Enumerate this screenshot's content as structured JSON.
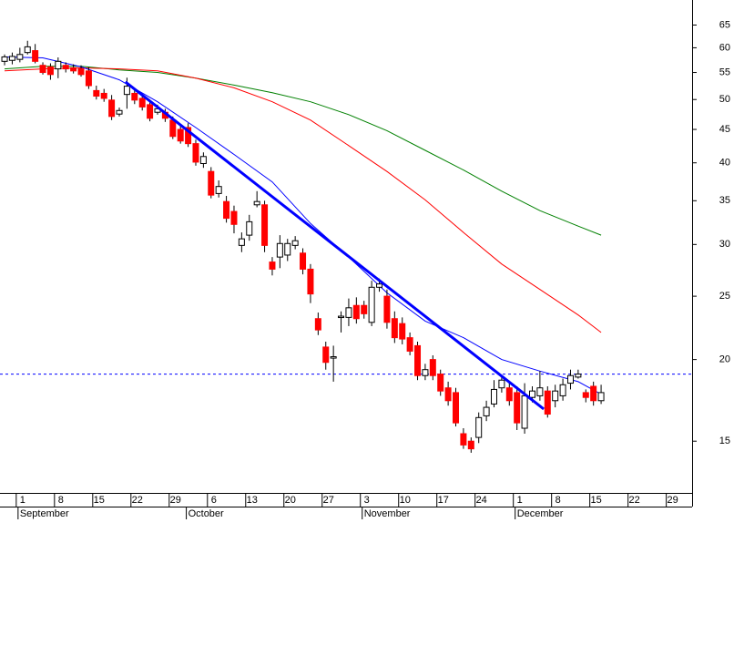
{
  "chart_data": {
    "type": "candlestick",
    "log_y": true,
    "ylim": [
      12.5,
      71
    ],
    "yticks": [
      15,
      20,
      25,
      30,
      35,
      40,
      45,
      50,
      55,
      60,
      65
    ],
    "xlim": [
      -2.6,
      87.9
    ],
    "xticks": [
      {
        "value": 0,
        "label": "1"
      },
      {
        "value": 5,
        "label": "8"
      },
      {
        "value": 10,
        "label": "15"
      },
      {
        "value": 15,
        "label": "22"
      },
      {
        "value": 20,
        "label": "29"
      },
      {
        "value": 25,
        "label": "6"
      },
      {
        "value": 30,
        "label": "13"
      },
      {
        "value": 35,
        "label": "20"
      },
      {
        "value": 40,
        "label": "27"
      },
      {
        "value": 45,
        "label": "3"
      },
      {
        "value": 50,
        "label": "10"
      },
      {
        "value": 55,
        "label": "17"
      },
      {
        "value": 60,
        "label": "24"
      },
      {
        "value": 65,
        "label": "1"
      },
      {
        "value": 70,
        "label": "8"
      },
      {
        "value": 75,
        "label": "15"
      },
      {
        "value": 80,
        "label": "22"
      },
      {
        "value": 85,
        "label": "29"
      }
    ],
    "month_ticks": [
      {
        "value": 0,
        "label": "September"
      },
      {
        "value": 22,
        "label": "October"
      },
      {
        "value": 45,
        "label": "November"
      },
      {
        "value": 65,
        "label": "December"
      }
    ],
    "up_color": "#ffffff",
    "down_color": "#ff0000",
    "x": [
      -2,
      -1,
      0,
      1,
      2,
      3,
      4,
      5,
      6,
      7,
      8,
      9,
      10,
      11,
      12,
      13,
      14,
      15,
      16,
      17,
      18,
      19,
      20,
      21,
      22,
      23,
      24,
      25,
      26,
      27,
      28,
      29,
      30,
      31,
      32,
      33,
      34,
      35,
      36,
      37,
      38,
      39,
      40,
      41,
      42,
      43,
      44,
      45,
      46,
      47,
      48,
      49,
      50,
      51,
      52,
      53,
      54,
      55,
      56,
      57,
      58,
      59,
      60,
      61,
      62,
      63,
      64,
      65,
      66,
      67,
      68,
      69,
      70,
      71,
      72,
      73,
      74,
      75,
      76
    ],
    "open": [
      57.2,
      57.4,
      57.6,
      59.0,
      59.4,
      56.4,
      56.1,
      55.7,
      56.4,
      55.9,
      55.7,
      55.3,
      51.6,
      51.1,
      49.9,
      47.5,
      50.9,
      51.1,
      50.2,
      49.1,
      47.8,
      47.8,
      46.5,
      45.0,
      45.3,
      42.8,
      39.9,
      38.8,
      35.9,
      34.9,
      33.7,
      29.9,
      31.0,
      34.5,
      34.5,
      28.2,
      28.7,
      28.9,
      29.9,
      29.1,
      27.5,
      23.1,
      20.9,
      20.1,
      23.2,
      23.2,
      24.2,
      24.2,
      22.8,
      25.8,
      25.0,
      23.1,
      22.7,
      21.6,
      21.0,
      18.9,
      20.0,
      19.0,
      18.1,
      17.8,
      15.4,
      15.0,
      15.2,
      16.4,
      17.1,
      18.1,
      18.1,
      17.8,
      15.7,
      17.5,
      17.6,
      17.9,
      17.3,
      17.6,
      18.4,
      18.8,
      17.8,
      18.2,
      17.3
    ],
    "high": [
      58.6,
      59.0,
      60.0,
      61.5,
      60.8,
      57.0,
      56.8,
      58.0,
      57.0,
      56.6,
      56.4,
      56.0,
      52.5,
      51.9,
      50.8,
      48.6,
      54.0,
      52.0,
      51.0,
      49.9,
      49.1,
      48.4,
      47.1,
      45.6,
      46.0,
      43.4,
      41.5,
      39.4,
      37.6,
      35.6,
      34.4,
      31.3,
      33.3,
      36.2,
      35.0,
      28.7,
      31.0,
      30.6,
      30.9,
      29.6,
      28.0,
      23.6,
      21.3,
      21.0,
      23.7,
      24.8,
      24.9,
      24.6,
      26.4,
      26.6,
      25.6,
      23.7,
      23.2,
      22.0,
      21.3,
      19.7,
      20.3,
      19.3,
      18.5,
      18.1,
      15.7,
      15.2,
      16.6,
      17.3,
      18.6,
      18.9,
      18.5,
      18.2,
      18.4,
      18.2,
      19.2,
      18.2,
      18.3,
      18.7,
      19.3,
      19.3,
      18.0,
      18.5,
      18.3
    ],
    "low": [
      56.4,
      56.6,
      57.0,
      58.6,
      56.8,
      54.6,
      53.6,
      53.9,
      55.0,
      54.8,
      54.2,
      51.9,
      50.0,
      49.6,
      46.5,
      47.1,
      48.4,
      49.2,
      48.1,
      46.3,
      47.4,
      46.2,
      43.5,
      42.8,
      42.3,
      39.6,
      39.3,
      35.3,
      35.4,
      32.4,
      31.2,
      29.2,
      30.4,
      34.2,
      29.2,
      26.9,
      27.6,
      28.3,
      29.5,
      27.0,
      24.4,
      21.8,
      19.3,
      18.5,
      22.0,
      22.5,
      22.7,
      23.1,
      22.5,
      25.4,
      22.3,
      21.2,
      21.1,
      20.3,
      18.6,
      18.6,
      18.6,
      17.6,
      17.0,
      15.8,
      14.6,
      14.4,
      14.9,
      16.1,
      16.9,
      17.8,
      17.0,
      15.6,
      15.4,
      17.2,
      17.3,
      16.3,
      16.9,
      17.3,
      18.0,
      18.7,
      17.2,
      17.0,
      17.1
    ],
    "close": [
      58.1,
      58.2,
      58.6,
      60.2,
      57.2,
      55.0,
      54.6,
      57.2,
      55.7,
      55.3,
      54.6,
      52.5,
      50.6,
      50.2,
      47.1,
      48.1,
      52.4,
      49.9,
      48.7,
      46.8,
      48.4,
      46.8,
      43.9,
      43.2,
      42.8,
      40.1,
      40.9,
      35.7,
      36.8,
      32.9,
      32.2,
      30.6,
      32.5,
      34.9,
      29.9,
      27.5,
      30.1,
      30.1,
      30.4,
      27.5,
      25.2,
      22.2,
      19.8,
      20.2,
      23.3,
      24.0,
      23.1,
      23.5,
      25.8,
      26.1,
      22.8,
      21.6,
      21.5,
      20.6,
      18.9,
      19.3,
      18.9,
      17.9,
      17.3,
      16.0,
      14.8,
      14.6,
      16.3,
      16.9,
      18.0,
      18.6,
      17.3,
      16.0,
      17.6,
      17.9,
      18.1,
      16.5,
      17.9,
      18.3,
      18.9,
      19.0,
      17.5,
      17.3,
      17.8
    ],
    "series": [
      {
        "color": "#008000",
        "x": [
          -2,
          3,
          8,
          13,
          18,
          23,
          28,
          33,
          38,
          43,
          48,
          53,
          58,
          63,
          68,
          73,
          76
        ],
        "values": [
          55.7,
          56.2,
          56.2,
          55.5,
          55.0,
          53.9,
          52.6,
          51.2,
          49.6,
          47.4,
          44.8,
          41.8,
          39.0,
          36.2,
          33.8,
          32.0,
          31.0
        ]
      },
      {
        "color": "#ff0000",
        "x": [
          -2,
          3,
          8,
          13,
          18,
          23,
          28,
          33,
          38,
          43,
          48,
          53,
          58,
          63,
          68,
          73,
          76
        ],
        "values": [
          55.3,
          55.7,
          55.9,
          55.7,
          55.3,
          53.9,
          52.1,
          49.6,
          46.5,
          42.5,
          38.8,
          35.1,
          31.3,
          28.0,
          25.6,
          23.4,
          22.0
        ]
      },
      {
        "color": "#0000ff",
        "x": [
          -2,
          3,
          8,
          13,
          18,
          23,
          28,
          33,
          38,
          43,
          48,
          53,
          58,
          63,
          68,
          73,
          76
        ],
        "values": [
          58.1,
          57.9,
          56.1,
          53.6,
          49.6,
          45.3,
          41.2,
          37.4,
          32.3,
          28.7,
          25.3,
          22.9,
          21.6,
          20.0,
          19.2,
          18.5,
          17.7
        ]
      }
    ],
    "trendline": {
      "color": "#0000ff",
      "x": [
        13.8,
        68.5
      ],
      "values": [
        53.2,
        16.8
      ]
    },
    "reference_line": {
      "color": "#0000ff",
      "value": 19
    }
  }
}
